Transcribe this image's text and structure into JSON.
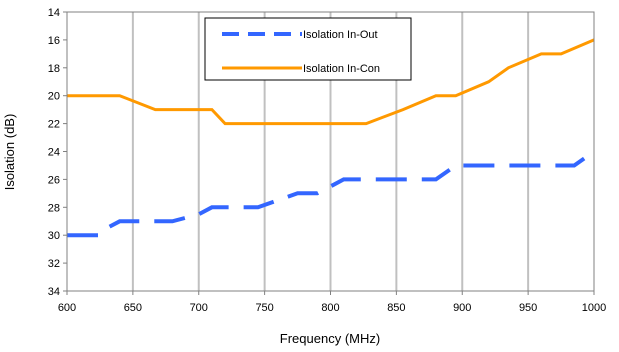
{
  "chart_data": {
    "type": "line",
    "title": "",
    "xlabel": "Frequency (MHz)",
    "ylabel": "Isolation (dB)",
    "xlim": [
      600,
      1000
    ],
    "ylim": [
      14,
      34
    ],
    "y_inverted": true,
    "x_ticks": [
      600,
      650,
      700,
      750,
      800,
      850,
      900,
      950,
      1000
    ],
    "y_ticks": [
      14,
      16,
      18,
      20,
      22,
      24,
      26,
      28,
      30,
      32,
      34
    ],
    "grid": {
      "vertical": true,
      "horizontal": false
    },
    "legend_position": "top-center",
    "series": [
      {
        "name": "Isolation In-Out",
        "color": "#3366ff",
        "dash": "dashed",
        "points": [
          [
            600,
            30
          ],
          [
            625,
            30
          ],
          [
            630,
            29.5
          ],
          [
            640,
            29
          ],
          [
            680,
            29
          ],
          [
            700,
            28.5
          ],
          [
            710,
            28
          ],
          [
            745,
            28
          ],
          [
            760,
            27.5
          ],
          [
            775,
            27
          ],
          [
            790,
            27
          ],
          [
            800,
            26.5
          ],
          [
            810,
            26
          ],
          [
            880,
            26
          ],
          [
            895,
            25
          ],
          [
            920,
            25
          ],
          [
            985,
            25
          ],
          [
            1000,
            24
          ]
        ]
      },
      {
        "name": "Isolation In-Con",
        "color": "#ff9900",
        "dash": "solid",
        "points": [
          [
            600,
            20
          ],
          [
            640,
            20
          ],
          [
            667,
            21
          ],
          [
            710,
            21
          ],
          [
            720,
            22
          ],
          [
            827,
            22
          ],
          [
            855,
            21
          ],
          [
            880,
            20
          ],
          [
            895,
            20
          ],
          [
            920,
            19
          ],
          [
            935,
            18
          ],
          [
            960,
            17
          ],
          [
            975,
            17
          ],
          [
            1000,
            16
          ]
        ]
      }
    ]
  }
}
